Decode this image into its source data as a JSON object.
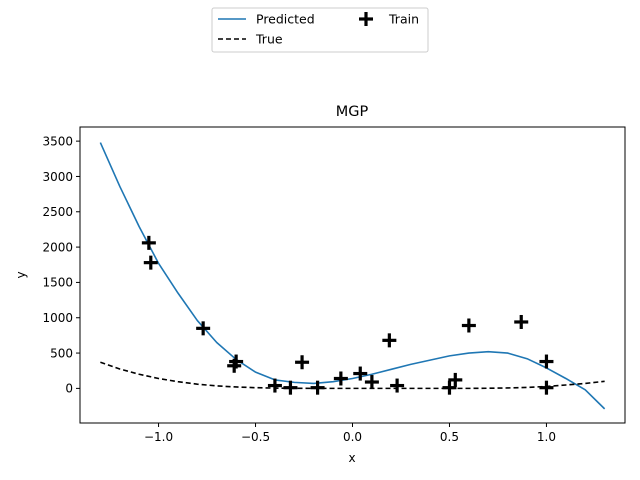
{
  "chart_data": {
    "type": "line",
    "title": "MGP",
    "xlabel": "x",
    "ylabel": "y",
    "xlim": [
      -1.405,
      1.405
    ],
    "ylim": [
      -490,
      3700
    ],
    "xticks": [
      -1.0,
      -0.5,
      0.0,
      0.5,
      1.0
    ],
    "xtick_labels": [
      "−1.0",
      "−0.5",
      "0.0",
      "0.5",
      "1.0"
    ],
    "yticks": [
      0,
      500,
      1000,
      1500,
      2000,
      2500,
      3000,
      3500
    ],
    "ytick_labels": [
      "0",
      "500",
      "1000",
      "1500",
      "2000",
      "2500",
      "3000",
      "3500"
    ],
    "grid": false,
    "legend": {
      "placement": "top-center, above plot",
      "columns": 2
    },
    "series": [
      {
        "name": "Predicted",
        "kind": "line",
        "style": "solid",
        "color": "#1f77b4",
        "x": [
          -1.3,
          -1.2,
          -1.1,
          -1.0,
          -0.9,
          -0.8,
          -0.7,
          -0.6,
          -0.5,
          -0.4,
          -0.3,
          -0.2,
          -0.1,
          0.0,
          0.1,
          0.2,
          0.3,
          0.4,
          0.5,
          0.6,
          0.7,
          0.8,
          0.9,
          1.0,
          1.1,
          1.2,
          1.3
        ],
        "y": [
          3480,
          2860,
          2290,
          1770,
          1350,
          960,
          650,
          410,
          230,
          120,
          85,
          70,
          95,
          140,
          200,
          270,
          340,
          400,
          460,
          500,
          520,
          500,
          420,
          290,
          140,
          -20,
          -290
        ]
      },
      {
        "name": "True",
        "kind": "line",
        "style": "dashed",
        "color": "#000000",
        "x": [
          -1.3,
          -1.2,
          -1.1,
          -1.0,
          -0.9,
          -0.8,
          -0.7,
          -0.6,
          -0.5,
          -0.4,
          -0.3,
          -0.2,
          -0.1,
          0.0,
          0.1,
          0.2,
          0.3,
          0.4,
          0.5,
          0.6,
          0.7,
          0.8,
          0.9,
          1.0,
          1.1,
          1.2,
          1.3
        ],
        "y": [
          370,
          275,
          200,
          140,
          95,
          60,
          35,
          20,
          10,
          4,
          1,
          0,
          0,
          0,
          0,
          0,
          0,
          0,
          0,
          0,
          2,
          6,
          14,
          28,
          48,
          70,
          100
        ]
      },
      {
        "name": "Train",
        "kind": "scatter",
        "marker": "plus",
        "color": "#000000",
        "x": [
          -1.05,
          -1.04,
          -0.77,
          -0.6,
          -0.61,
          -0.4,
          -0.32,
          -0.26,
          -0.18,
          -0.06,
          0.04,
          0.1,
          0.19,
          0.23,
          0.5,
          0.53,
          0.6,
          0.87,
          1.0,
          1.0
        ],
        "y": [
          2060,
          1780,
          850,
          380,
          320,
          40,
          10,
          370,
          10,
          140,
          210,
          90,
          680,
          40,
          10,
          120,
          890,
          940,
          380,
          10
        ]
      }
    ]
  }
}
